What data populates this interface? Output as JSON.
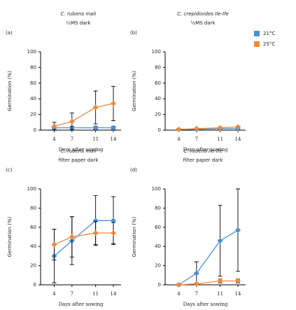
{
  "legend": [
    {
      "name": "21°C",
      "color": "#4a90d9"
    },
    {
      "name": "25°C",
      "color": "#f0893a"
    }
  ],
  "chart_data": [
    {
      "type": "line",
      "panel": "(a)",
      "title": "C. rubens mali",
      "subtitle": "½MS dark",
      "x_label": "Days after sowing",
      "y_label": "Germination (%)",
      "x": [
        4,
        7,
        11,
        14
      ],
      "xlim": [
        1.7,
        15.3
      ],
      "xticks": [
        4,
        7,
        11,
        14
      ],
      "ylim": [
        0,
        100
      ],
      "yticks": [
        0,
        20,
        40,
        60,
        80,
        100
      ],
      "series": [
        {
          "color": "#4a90d9",
          "values": [
            3,
            3,
            3,
            3
          ],
          "errors": [
            2,
            2,
            2,
            2
          ]
        },
        {
          "color": "#f0893a",
          "values": [
            5,
            11,
            29,
            34
          ],
          "errors": [
            5,
            11,
            21,
            22
          ]
        }
      ]
    },
    {
      "type": "line",
      "panel": "(b)",
      "title": "C. crepidioides Ile-Ife",
      "subtitle": "½MS dark",
      "x_label": "Days after sowing",
      "y_label": "Germination (%)",
      "x": [
        4,
        7,
        11,
        14
      ],
      "xlim": [
        1.7,
        15.3
      ],
      "xticks": [
        4,
        7,
        11,
        14
      ],
      "ylim": [
        0,
        100
      ],
      "yticks": [
        0,
        20,
        40,
        60,
        80,
        100
      ],
      "series": [
        {
          "color": "#4a90d9",
          "values": [
            1,
            1,
            2,
            2
          ],
          "errors": [
            1,
            1,
            1,
            1
          ]
        },
        {
          "color": "#f0893a",
          "values": [
            1,
            2,
            3,
            4
          ],
          "errors": [
            1,
            1,
            1,
            1
          ]
        }
      ]
    },
    {
      "type": "line",
      "panel": "(c)",
      "title": "C. rubens mali",
      "subtitle": "filter paper dark",
      "x_label": "Days after sowing",
      "y_label": "Germination (%)",
      "x": [
        4,
        7,
        11,
        14
      ],
      "xlim": [
        1.7,
        15.3
      ],
      "xticks": [
        4,
        7,
        11,
        14
      ],
      "ylim": [
        0,
        100
      ],
      "yticks": [
        0,
        20,
        40,
        60,
        80,
        100
      ],
      "series": [
        {
          "color": "#4a90d9",
          "values": [
            30,
            46,
            67,
            67
          ],
          "errors": [
            28,
            25,
            26,
            25
          ]
        },
        {
          "color": "#f0893a",
          "values": [
            42,
            50,
            54,
            54
          ],
          "errors": [
            16,
            21,
            12,
            11
          ]
        }
      ]
    },
    {
      "type": "line",
      "panel": "(d)",
      "title": "C. rubens Ile-Ife",
      "subtitle": "filter paper dark",
      "x_label": "Days after sowing",
      "y_label": "Germination (%)",
      "x": [
        4,
        7,
        11,
        14
      ],
      "xlim": [
        1.7,
        15.3
      ],
      "xticks": [
        4,
        7,
        11,
        14
      ],
      "ylim": [
        0,
        100
      ],
      "yticks": [
        0,
        20,
        40,
        60,
        80,
        100
      ],
      "series": [
        {
          "color": "#4a90d9",
          "values": [
            0,
            12,
            46,
            57
          ],
          "errors": [
            0,
            12,
            37,
            43
          ]
        },
        {
          "color": "#f0893a",
          "values": [
            0,
            1,
            4,
            4
          ],
          "errors": [
            1,
            1,
            2,
            2
          ]
        }
      ]
    }
  ]
}
